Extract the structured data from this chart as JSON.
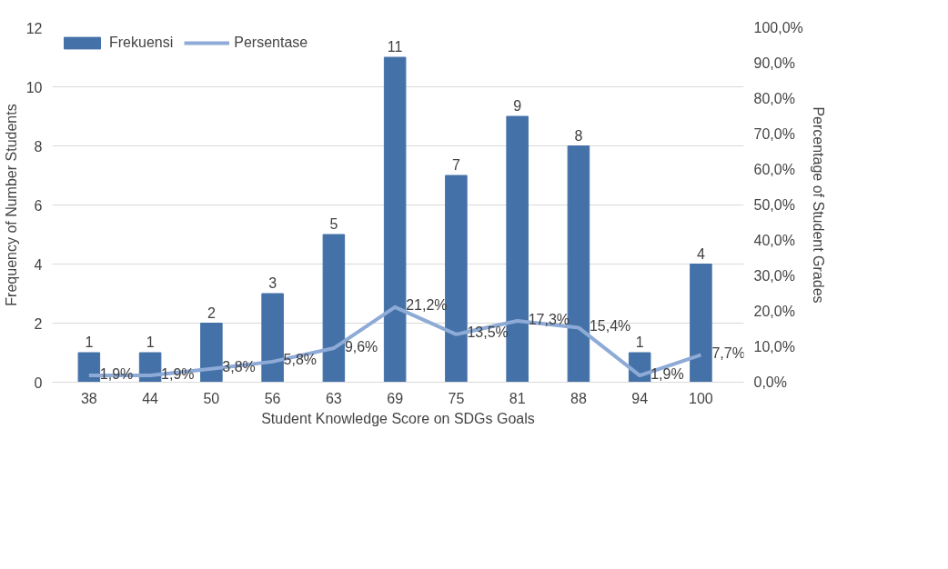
{
  "chart_data": {
    "type": "bar",
    "xlabel": "Student Knowledge Score on SDGs Goals",
    "ylabel": "Frequency of Number Students",
    "y2label": "Percentage of Student Grades",
    "categories": [
      "38",
      "44",
      "50",
      "56",
      "63",
      "69",
      "75",
      "81",
      "88",
      "94",
      "100"
    ],
    "series": [
      {
        "name": "Frekuensi",
        "type": "bar",
        "color": "#4472a8",
        "values": [
          1,
          1,
          2,
          3,
          5,
          11,
          7,
          9,
          8,
          1,
          4
        ],
        "value_labels": [
          "1",
          "1",
          "2",
          "3",
          "5",
          "11",
          "7",
          "9",
          "8",
          "1",
          "4"
        ]
      },
      {
        "name": "Persentase",
        "type": "line",
        "axis": "y2",
        "color": "#8eaad6",
        "values": [
          1.9,
          1.9,
          3.8,
          5.8,
          9.6,
          21.2,
          13.5,
          17.3,
          15.4,
          1.9,
          7.7
        ],
        "value_labels": [
          "1,9%",
          "1,9%",
          "3,8%",
          "5,8%",
          "9,6%",
          "21,2%",
          "13,5%",
          "17,3%",
          "15,4%",
          "1,9%",
          "7,7%"
        ]
      }
    ],
    "ylim": [
      0,
      12
    ],
    "yticks": [
      0,
      2,
      4,
      6,
      8,
      10,
      12
    ],
    "y2lim": [
      0,
      100
    ],
    "y2ticks": [
      {
        "value": 0,
        "label": "0,0%"
      },
      {
        "value": 10,
        "label": "10,0%"
      },
      {
        "value": 20,
        "label": "20,0%"
      },
      {
        "value": 30,
        "label": "30,0%"
      },
      {
        "value": 40,
        "label": "40,0%"
      },
      {
        "value": 50,
        "label": "50,0%"
      },
      {
        "value": 60,
        "label": "60,0%"
      },
      {
        "value": 70,
        "label": "70,0%"
      },
      {
        "value": 80,
        "label": "80,0%"
      },
      {
        "value": 90,
        "label": "90,0%"
      },
      {
        "value": 100,
        "label": "100,0%"
      }
    ],
    "grid": "y",
    "legend": "top left",
    "marker": "none",
    "line_style": "solid"
  }
}
